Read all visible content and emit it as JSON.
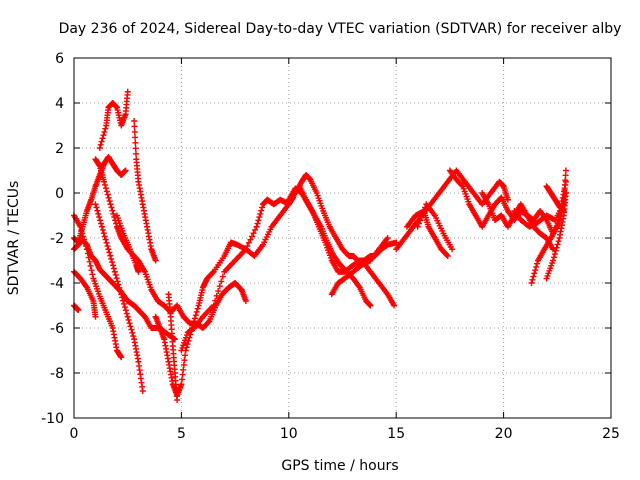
{
  "chart_data": {
    "type": "scatter",
    "title": "Day 236 of 2024, Sidereal Day-to-day VTEC variation (SDTVAR) for receiver alby",
    "xlabel": "GPS time / hours",
    "ylabel": "SDTVAR / TECUs",
    "xlim": [
      0,
      25
    ],
    "ylim": [
      -10,
      6
    ],
    "xticks": [
      0,
      5,
      10,
      15,
      20,
      25
    ],
    "yticks": [
      -10,
      -8,
      -6,
      -4,
      -2,
      0,
      2,
      4,
      6
    ],
    "grid": true,
    "marker": "plus",
    "color": "#ff0000",
    "series": [
      {
        "name": "s1",
        "points": [
          [
            0.0,
            -2.0
          ],
          [
            0.2,
            -2.2
          ],
          [
            0.4,
            -1.5
          ],
          [
            0.6,
            -0.8
          ],
          [
            0.8,
            -0.3
          ],
          [
            1.0,
            0.3
          ],
          [
            1.2,
            0.8
          ],
          [
            1.4,
            1.3
          ],
          [
            1.6,
            1.6
          ],
          [
            1.8,
            1.3
          ],
          [
            2.0,
            1.0
          ],
          [
            2.2,
            0.8
          ],
          [
            2.4,
            1.0
          ]
        ]
      },
      {
        "name": "s2",
        "points": [
          [
            0.0,
            -2.5
          ],
          [
            0.2,
            -2.3
          ],
          [
            0.4,
            -2.1
          ],
          [
            0.6,
            -2.3
          ],
          [
            0.8,
            -2.8
          ],
          [
            1.0,
            -3.0
          ],
          [
            1.2,
            -3.4
          ],
          [
            1.4,
            -3.6
          ],
          [
            1.6,
            -3.8
          ],
          [
            1.8,
            -4.0
          ],
          [
            2.0,
            -4.2
          ],
          [
            2.2,
            -4.4
          ],
          [
            2.5,
            -4.8
          ],
          [
            2.8,
            -5.0
          ],
          [
            3.0,
            -5.2
          ],
          [
            3.3,
            -5.5
          ],
          [
            3.6,
            -6.0
          ],
          [
            4.0,
            -6.0
          ],
          [
            4.4,
            -6.3
          ],
          [
            4.7,
            -6.5
          ]
        ]
      },
      {
        "name": "s3",
        "points": [
          [
            0.0,
            -1.0
          ],
          [
            0.3,
            -1.5
          ],
          [
            0.6,
            -2.5
          ],
          [
            0.9,
            -3.8
          ],
          [
            1.2,
            -4.6
          ],
          [
            1.5,
            -5.3
          ],
          [
            1.8,
            -6.0
          ],
          [
            2.0,
            -7.0
          ],
          [
            2.2,
            -7.3
          ]
        ]
      },
      {
        "name": "s4",
        "points": [
          [
            1.2,
            2.0
          ],
          [
            1.5,
            3.0
          ],
          [
            1.6,
            3.8
          ],
          [
            1.8,
            4.0
          ],
          [
            2.0,
            3.8
          ],
          [
            2.2,
            3.0
          ],
          [
            2.4,
            3.5
          ],
          [
            2.5,
            4.5
          ]
        ]
      },
      {
        "name": "s5",
        "points": [
          [
            1.0,
            -0.5
          ],
          [
            1.3,
            -1.5
          ],
          [
            1.6,
            -2.5
          ],
          [
            1.9,
            -3.5
          ],
          [
            2.2,
            -4.5
          ],
          [
            2.5,
            -5.5
          ],
          [
            2.8,
            -6.5
          ],
          [
            3.0,
            -7.5
          ],
          [
            3.2,
            -8.8
          ]
        ]
      },
      {
        "name": "s6",
        "points": [
          [
            0.0,
            -3.5
          ],
          [
            0.3,
            -3.8
          ],
          [
            0.6,
            -4.2
          ],
          [
            0.9,
            -4.8
          ],
          [
            1.0,
            -5.5
          ]
        ]
      },
      {
        "name": "s7",
        "points": [
          [
            2.0,
            -1.0
          ],
          [
            2.3,
            -1.8
          ],
          [
            2.6,
            -2.5
          ],
          [
            2.9,
            -3.2
          ],
          [
            3.0,
            -3.5
          ]
        ]
      },
      {
        "name": "s8",
        "points": [
          [
            1.0,
            1.5
          ],
          [
            1.2,
            1.2
          ],
          [
            1.4,
            0.5
          ],
          [
            1.7,
            -0.5
          ],
          [
            2.0,
            -1.5
          ],
          [
            2.2,
            -2.0
          ],
          [
            2.5,
            -2.5
          ],
          [
            3.0,
            -3.0
          ],
          [
            3.3,
            -3.5
          ],
          [
            3.6,
            -4.3
          ],
          [
            3.9,
            -4.8
          ],
          [
            4.2,
            -5.0
          ],
          [
            4.5,
            -5.3
          ],
          [
            4.8,
            -5.0
          ],
          [
            5.1,
            -5.5
          ],
          [
            5.4,
            -5.8
          ],
          [
            5.7,
            -5.8
          ],
          [
            6.0,
            -6.0
          ],
          [
            6.3,
            -5.7
          ],
          [
            6.6,
            -5.0
          ],
          [
            6.9,
            -4.5
          ],
          [
            7.2,
            -4.2
          ],
          [
            7.5,
            -4.0
          ],
          [
            7.8,
            -4.3
          ],
          [
            8.0,
            -4.8
          ]
        ]
      },
      {
        "name": "s9",
        "points": [
          [
            2.8,
            3.2
          ],
          [
            2.9,
            1.5
          ],
          [
            3.0,
            0.5
          ],
          [
            3.2,
            -0.5
          ],
          [
            3.4,
            -1.5
          ],
          [
            3.6,
            -2.5
          ],
          [
            3.8,
            -3.0
          ]
        ]
      },
      {
        "name": "s10",
        "points": [
          [
            0.0,
            -5.0
          ],
          [
            0.1,
            -5.1
          ],
          [
            0.2,
            -5.2
          ]
        ]
      },
      {
        "name": "s11",
        "points": [
          [
            3.8,
            -5.5
          ],
          [
            4.0,
            -6.0
          ],
          [
            4.2,
            -6.5
          ],
          [
            4.4,
            -7.5
          ],
          [
            4.6,
            -8.5
          ],
          [
            4.8,
            -9.0
          ],
          [
            5.0,
            -8.5
          ],
          [
            5.2,
            -7.0
          ],
          [
            5.5,
            -6.0
          ],
          [
            5.8,
            -5.0
          ],
          [
            6.0,
            -4.2
          ],
          [
            6.2,
            -3.8
          ],
          [
            6.5,
            -3.5
          ],
          [
            7.0,
            -2.8
          ],
          [
            7.3,
            -2.2
          ],
          [
            7.6,
            -2.3
          ],
          [
            8.0,
            -2.5
          ],
          [
            8.4,
            -2.8
          ],
          [
            8.8,
            -2.3
          ],
          [
            9.2,
            -1.5
          ],
          [
            9.6,
            -1.0
          ],
          [
            10.0,
            -0.5
          ],
          [
            10.3,
            0.0
          ],
          [
            10.6,
            0.5
          ],
          [
            10.8,
            0.8
          ],
          [
            11.0,
            0.6
          ],
          [
            11.3,
            0.0
          ],
          [
            11.6,
            -0.8
          ],
          [
            11.9,
            -1.5
          ],
          [
            12.2,
            -2.0
          ],
          [
            12.5,
            -2.5
          ],
          [
            12.8,
            -2.8
          ],
          [
            13.0,
            -2.8
          ],
          [
            13.2,
            -3.0
          ],
          [
            13.5,
            -3.0
          ],
          [
            13.8,
            -2.8
          ],
          [
            14.0,
            -2.8
          ],
          [
            14.3,
            -2.5
          ],
          [
            14.6,
            -2.3
          ],
          [
            15.0,
            -2.2
          ]
        ]
      },
      {
        "name": "s12",
        "points": [
          [
            4.4,
            -4.5
          ],
          [
            4.5,
            -5.5
          ],
          [
            4.6,
            -6.8
          ],
          [
            4.7,
            -8.0
          ],
          [
            4.8,
            -9.2
          ]
        ]
      },
      {
        "name": "s13",
        "points": [
          [
            5.0,
            -7.0
          ],
          [
            5.3,
            -6.2
          ],
          [
            5.6,
            -6.0
          ],
          [
            6.0,
            -5.5
          ],
          [
            6.5,
            -5.0
          ],
          [
            7.0,
            -3.5
          ],
          [
            7.5,
            -3.0
          ],
          [
            8.0,
            -2.5
          ],
          [
            8.5,
            -1.5
          ],
          [
            8.8,
            -0.5
          ],
          [
            9.0,
            -0.3
          ],
          [
            9.3,
            -0.5
          ],
          [
            9.6,
            -0.3
          ],
          [
            10.0,
            -0.5
          ],
          [
            10.2,
            -0.2
          ]
        ]
      },
      {
        "name": "s14",
        "points": [
          [
            10.0,
            -0.3
          ],
          [
            10.3,
            0.2
          ],
          [
            10.6,
            0.0
          ],
          [
            10.9,
            -0.5
          ],
          [
            11.2,
            -1.0
          ],
          [
            11.5,
            -1.5
          ],
          [
            11.8,
            -2.2
          ],
          [
            12.1,
            -2.8
          ],
          [
            12.4,
            -3.2
          ],
          [
            12.7,
            -3.5
          ],
          [
            13.0,
            -3.8
          ],
          [
            13.3,
            -4.2
          ],
          [
            13.6,
            -4.8
          ],
          [
            13.8,
            -5.0
          ]
        ]
      },
      {
        "name": "s15",
        "points": [
          [
            10.5,
            0.3
          ],
          [
            10.8,
            -0.3
          ],
          [
            11.1,
            -0.8
          ],
          [
            11.4,
            -1.5
          ],
          [
            11.7,
            -2.2
          ],
          [
            12.0,
            -3.0
          ],
          [
            12.3,
            -3.5
          ],
          [
            12.6,
            -3.5
          ],
          [
            13.0,
            -3.2
          ],
          [
            13.4,
            -3.0
          ],
          [
            13.8,
            -3.5
          ],
          [
            14.2,
            -4.0
          ],
          [
            14.6,
            -4.5
          ],
          [
            14.9,
            -5.0
          ]
        ]
      },
      {
        "name": "s16",
        "points": [
          [
            12.0,
            -4.5
          ],
          [
            12.3,
            -4.0
          ],
          [
            12.6,
            -3.8
          ],
          [
            13.0,
            -3.5
          ],
          [
            13.4,
            -3.2
          ],
          [
            13.8,
            -3.0
          ],
          [
            14.2,
            -2.5
          ],
          [
            14.6,
            -2.0
          ]
        ]
      },
      {
        "name": "s17",
        "points": [
          [
            15.0,
            -2.5
          ],
          [
            15.4,
            -2.0
          ],
          [
            15.8,
            -1.5
          ],
          [
            16.2,
            -1.0
          ],
          [
            16.6,
            -0.5
          ],
          [
            17.0,
            0.0
          ],
          [
            17.4,
            0.5
          ],
          [
            17.8,
            1.0
          ],
          [
            18.2,
            0.5
          ],
          [
            18.6,
            0.0
          ],
          [
            19.0,
            -0.5
          ],
          [
            19.4,
            0.0
          ],
          [
            19.8,
            0.5
          ],
          [
            20.0,
            0.3
          ],
          [
            20.2,
            -0.3
          ]
        ]
      },
      {
        "name": "s18",
        "points": [
          [
            15.5,
            -1.5
          ],
          [
            15.9,
            -1.0
          ],
          [
            16.3,
            -0.8
          ],
          [
            16.5,
            -1.5
          ],
          [
            16.8,
            -2.0
          ],
          [
            17.1,
            -2.5
          ],
          [
            17.4,
            -2.8
          ]
        ]
      },
      {
        "name": "s19",
        "points": [
          [
            16.0,
            -1.5
          ],
          [
            16.4,
            -0.5
          ],
          [
            16.8,
            -1.0
          ],
          [
            17.2,
            -1.8
          ],
          [
            17.6,
            -2.5
          ]
        ]
      },
      {
        "name": "s20",
        "points": [
          [
            17.5,
            1.0
          ],
          [
            17.8,
            0.6
          ],
          [
            18.1,
            0.3
          ],
          [
            18.4,
            -0.5
          ],
          [
            18.7,
            -1.0
          ],
          [
            19.0,
            -1.5
          ],
          [
            19.3,
            -1.0
          ],
          [
            19.6,
            -0.5
          ],
          [
            19.9,
            -0.2
          ],
          [
            20.2,
            -0.8
          ],
          [
            20.5,
            -1.2
          ],
          [
            20.8,
            -0.8
          ],
          [
            21.1,
            -1.0
          ],
          [
            21.4,
            -1.5
          ],
          [
            21.7,
            -1.8
          ],
          [
            22.0,
            -2.0
          ],
          [
            22.3,
            -2.5
          ]
        ]
      },
      {
        "name": "s21",
        "points": [
          [
            19.0,
            0.0
          ],
          [
            19.3,
            -0.5
          ],
          [
            19.6,
            -1.2
          ],
          [
            19.9,
            -1.0
          ],
          [
            20.2,
            -1.5
          ],
          [
            20.5,
            -1.0
          ],
          [
            20.8,
            -0.5
          ],
          [
            21.1,
            -1.0
          ],
          [
            21.4,
            -1.2
          ],
          [
            21.7,
            -0.8
          ],
          [
            22.0,
            -1.2
          ],
          [
            22.3,
            -1.8
          ],
          [
            22.6,
            -1.2
          ],
          [
            22.9,
            0.0
          ]
        ]
      },
      {
        "name": "s22",
        "points": [
          [
            20.5,
            -0.8
          ],
          [
            20.8,
            -1.2
          ],
          [
            21.2,
            -1.5
          ],
          [
            21.6,
            -1.3
          ],
          [
            22.0,
            -1.0
          ],
          [
            22.4,
            -1.2
          ],
          [
            22.8,
            -0.5
          ],
          [
            22.9,
            1.0
          ]
        ]
      },
      {
        "name": "s23",
        "points": [
          [
            21.3,
            -4.0
          ],
          [
            21.6,
            -3.0
          ],
          [
            21.9,
            -2.5
          ],
          [
            22.2,
            -2.0
          ],
          [
            22.5,
            -1.5
          ],
          [
            22.7,
            -0.5
          ],
          [
            22.9,
            0.5
          ]
        ]
      },
      {
        "name": "s24",
        "points": [
          [
            22.0,
            -3.8
          ],
          [
            22.3,
            -3.0
          ],
          [
            22.6,
            -2.0
          ],
          [
            22.8,
            -1.0
          ],
          [
            22.9,
            0.0
          ]
        ]
      },
      {
        "name": "s25",
        "points": [
          [
            22.0,
            0.3
          ],
          [
            22.2,
            0.0
          ],
          [
            22.4,
            -0.3
          ],
          [
            22.6,
            -0.6
          ],
          [
            22.8,
            -0.8
          ]
        ]
      }
    ]
  }
}
